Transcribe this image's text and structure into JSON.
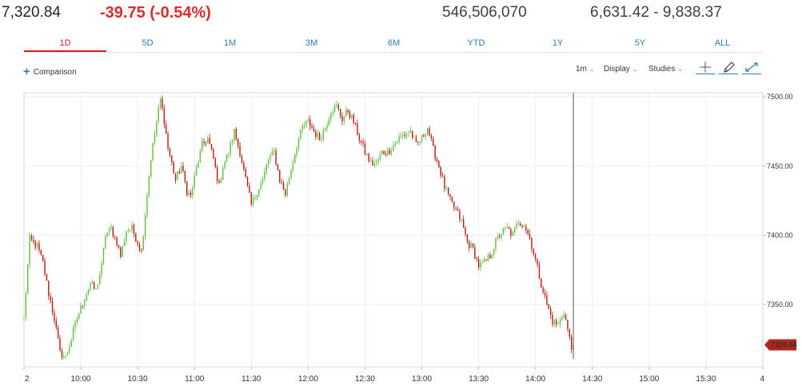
{
  "quote": {
    "last": "7,320.84",
    "change": "-39.75 (-0.54%)",
    "volume": "546,506,070",
    "range": "6,631.42 - 9,838.37"
  },
  "tabs": [
    {
      "label": "1D",
      "active": true
    },
    {
      "label": "5D",
      "active": false
    },
    {
      "label": "1M",
      "active": false
    },
    {
      "label": "3M",
      "active": false
    },
    {
      "label": "6M",
      "active": false
    },
    {
      "label": "YTD",
      "active": false
    },
    {
      "label": "1Y",
      "active": false
    },
    {
      "label": "5Y",
      "active": false
    },
    {
      "label": "ALL",
      "active": false
    }
  ],
  "toolbar": {
    "comparison_label": "Comparison",
    "interval_label": "1m",
    "display_label": "Display",
    "studies_label": "Studies",
    "tools": [
      "crosshair-icon",
      "pencil-icon",
      "zoom-icon"
    ]
  },
  "colors": {
    "accent": "#2f7bbd",
    "up_candle": "#5fbf3f",
    "down_candle": "#b61c12",
    "negative": "#e12a2a",
    "price_tag": "#b3261e"
  },
  "chart_data": {
    "type": "candlestick",
    "interval": "1m",
    "last_price": 7320.84,
    "last_price_label": "7320.84",
    "ylim": [
      7305,
      7503
    ],
    "y_ticks": [
      7350,
      7400,
      7450,
      7500
    ],
    "y_tick_labels": [
      "7350.00",
      "7400.00",
      "7450.00",
      "7500.00"
    ],
    "x_tick_labels": [
      "2",
      "10:00",
      "10:30",
      "11:00",
      "11:30",
      "12:00",
      "12:30",
      "13:00",
      "13:30",
      "14:00",
      "14:30",
      "15:00",
      "15:30",
      "4"
    ],
    "x_range": [
      "09:30",
      "16:00"
    ],
    "cursor_time": "14:20",
    "price_path": [
      [
        "09:30",
        7340
      ],
      [
        "09:33",
        7397
      ],
      [
        "09:37",
        7392
      ],
      [
        "09:40",
        7380
      ],
      [
        "09:43",
        7358
      ],
      [
        "09:46",
        7340
      ],
      [
        "09:49",
        7315
      ],
      [
        "09:52",
        7312
      ],
      [
        "09:55",
        7325
      ],
      [
        "09:58",
        7340
      ],
      [
        "10:02",
        7355
      ],
      [
        "10:05",
        7365
      ],
      [
        "10:08",
        7360
      ],
      [
        "10:11",
        7378
      ],
      [
        "10:13",
        7400
      ],
      [
        "10:16",
        7405
      ],
      [
        "10:19",
        7395
      ],
      [
        "10:21",
        7385
      ],
      [
        "10:24",
        7403
      ],
      [
        "10:27",
        7405
      ],
      [
        "10:30",
        7395
      ],
      [
        "10:32",
        7388
      ],
      [
        "10:35",
        7430
      ],
      [
        "10:37",
        7456
      ],
      [
        "10:40",
        7482
      ],
      [
        "10:42",
        7498
      ],
      [
        "10:44",
        7483
      ],
      [
        "10:46",
        7463
      ],
      [
        "10:48",
        7452
      ],
      [
        "10:50",
        7440
      ],
      [
        "10:53",
        7450
      ],
      [
        "10:56",
        7432
      ],
      [
        "10:58",
        7428
      ],
      [
        "11:01",
        7448
      ],
      [
        "11:04",
        7465
      ],
      [
        "11:07",
        7470
      ],
      [
        "11:10",
        7455
      ],
      [
        "11:13",
        7435
      ],
      [
        "11:15",
        7450
      ],
      [
        "11:18",
        7460
      ],
      [
        "11:21",
        7475
      ],
      [
        "11:24",
        7460
      ],
      [
        "11:27",
        7440
      ],
      [
        "11:30",
        7422
      ],
      [
        "11:33",
        7432
      ],
      [
        "11:36",
        7440
      ],
      [
        "11:39",
        7455
      ],
      [
        "11:42",
        7460
      ],
      [
        "11:45",
        7440
      ],
      [
        "11:48",
        7430
      ],
      [
        "11:51",
        7448
      ],
      [
        "11:54",
        7465
      ],
      [
        "11:57",
        7478
      ],
      [
        "12:00",
        7482
      ],
      [
        "12:03",
        7475
      ],
      [
        "12:06",
        7470
      ],
      [
        "12:09",
        7478
      ],
      [
        "12:12",
        7490
      ],
      [
        "12:15",
        7493
      ],
      [
        "12:18",
        7484
      ],
      [
        "12:21",
        7490
      ],
      [
        "12:24",
        7482
      ],
      [
        "12:27",
        7470
      ],
      [
        "12:30",
        7460
      ],
      [
        "12:33",
        7452
      ],
      [
        "12:36",
        7452
      ],
      [
        "12:39",
        7460
      ],
      [
        "12:42",
        7460
      ],
      [
        "12:45",
        7465
      ],
      [
        "12:48",
        7470
      ],
      [
        "12:51",
        7473
      ],
      [
        "12:54",
        7475
      ],
      [
        "12:57",
        7465
      ],
      [
        "13:00",
        7470
      ],
      [
        "13:03",
        7478
      ],
      [
        "13:06",
        7462
      ],
      [
        "13:09",
        7450
      ],
      [
        "13:12",
        7435
      ],
      [
        "13:15",
        7425
      ],
      [
        "13:18",
        7418
      ],
      [
        "13:21",
        7410
      ],
      [
        "13:24",
        7395
      ],
      [
        "13:27",
        7390
      ],
      [
        "13:30",
        7378
      ],
      [
        "13:33",
        7380
      ],
      [
        "13:36",
        7385
      ],
      [
        "13:39",
        7395
      ],
      [
        "13:42",
        7402
      ],
      [
        "13:45",
        7405
      ],
      [
        "13:48",
        7400
      ],
      [
        "13:51",
        7410
      ],
      [
        "13:54",
        7408
      ],
      [
        "13:57",
        7398
      ],
      [
        "14:00",
        7382
      ],
      [
        "14:03",
        7365
      ],
      [
        "14:06",
        7350
      ],
      [
        "14:09",
        7338
      ],
      [
        "14:12",
        7335
      ],
      [
        "14:15",
        7345
      ],
      [
        "14:17",
        7332
      ],
      [
        "14:19",
        7318
      ],
      [
        "14:20",
        7320.84
      ]
    ]
  }
}
